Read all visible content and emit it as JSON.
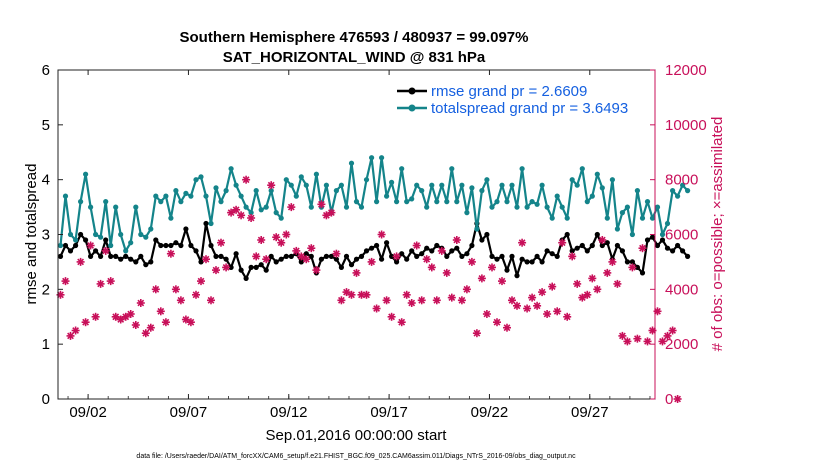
{
  "chart_data": {
    "type": "line",
    "title_line1": "Southern Hemisphere 476593 / 480937 = 99.097%",
    "title_line2": "SAT_HORIZONTAL_WIND @ 831 hPa",
    "xlabel": "Sep.01,2016 00:00:00 start",
    "ylabel_left": "rmse and totalspread",
    "ylabel_right": "# of obs: o=possible; ×=assimilated",
    "footnote": "data file: /Users/raeder/DAI/ATM_forcXX/CAM6_setup/f.e21.FHIST_BGC.f09_025.CAM6assim.011/Diags_NTrS_2016-09/obs_diag_output.nc",
    "xlim": [
      0.5,
      30.25
    ],
    "ylim_left": [
      0,
      6
    ],
    "ylim_right": [
      0,
      12000
    ],
    "x_ticks": [
      {
        "v": 2,
        "label": "09/02"
      },
      {
        "v": 7,
        "label": "09/07"
      },
      {
        "v": 12,
        "label": "09/12"
      },
      {
        "v": 17,
        "label": "09/17"
      },
      {
        "v": 22,
        "label": "09/22"
      },
      {
        "v": 27,
        "label": "09/27"
      }
    ],
    "y_ticks_left": [
      "0",
      "1",
      "2",
      "3",
      "4",
      "5",
      "6"
    ],
    "y_ticks_right": [
      "0",
      "2000",
      "4000",
      "6000",
      "8000",
      "10000",
      "12000"
    ],
    "x_step": 0.25,
    "x_start": 0.625,
    "series": [
      {
        "name": "rmse",
        "legend": "rmse grand pr = 2.6609",
        "color": "#000000",
        "marker": "dot",
        "values": [
          2.6,
          2.8,
          2.7,
          2.8,
          3.0,
          2.9,
          2.6,
          2.7,
          2.6,
          2.9,
          2.6,
          2.6,
          2.55,
          2.6,
          2.55,
          2.5,
          2.6,
          2.45,
          2.5,
          2.9,
          2.8,
          2.8,
          2.8,
          2.85,
          2.8,
          3.1,
          2.8,
          2.7,
          2.5,
          3.2,
          2.8,
          2.6,
          2.6,
          2.55,
          2.4,
          2.65,
          2.35,
          2.2,
          2.4,
          2.4,
          2.45,
          2.35,
          2.6,
          2.5,
          2.55,
          2.6,
          2.6,
          2.65,
          2.5,
          2.65,
          2.6,
          2.3,
          2.55,
          2.6,
          2.6,
          2.55,
          2.4,
          2.6,
          2.45,
          2.55,
          2.6,
          2.7,
          2.75,
          2.8,
          2.55,
          2.85,
          2.6,
          2.5,
          2.65,
          2.55,
          2.7,
          2.6,
          2.65,
          2.75,
          2.7,
          2.8,
          2.75,
          2.6,
          2.7,
          2.75,
          2.6,
          2.65,
          2.8,
          3.2,
          2.9,
          3.0,
          2.6,
          2.55,
          2.6,
          2.35,
          2.6,
          2.25,
          2.55,
          2.5,
          2.5,
          2.6,
          2.5,
          2.7,
          2.65,
          2.6,
          2.9,
          3.0,
          2.7,
          2.75,
          2.8,
          2.7,
          2.8,
          3.0,
          2.8,
          2.85,
          2.55,
          2.8,
          2.7,
          2.5,
          2.5,
          2.4,
          2.3,
          2.9,
          2.95,
          2.8,
          2.9,
          2.75,
          2.7,
          2.8,
          2.7,
          2.6
        ]
      },
      {
        "name": "totalspread",
        "legend": "totalspread grand pr = 3.6493",
        "color": "#14848a",
        "marker": "dot",
        "values": [
          2.8,
          3.7,
          3.0,
          2.9,
          3.6,
          4.1,
          3.5,
          3.0,
          2.95,
          3.6,
          2.8,
          3.5,
          3.0,
          2.7,
          2.85,
          3.5,
          3.0,
          2.95,
          3.1,
          3.7,
          3.6,
          3.7,
          3.3,
          3.8,
          3.6,
          3.75,
          3.7,
          4.0,
          4.05,
          3.7,
          3.2,
          3.85,
          3.6,
          3.8,
          4.2,
          3.9,
          3.7,
          3.5,
          3.4,
          3.8,
          3.45,
          3.5,
          3.8,
          3.4,
          3.3,
          4.0,
          3.9,
          3.7,
          4.05,
          3.9,
          3.5,
          4.1,
          3.5,
          3.9,
          3.4,
          3.8,
          3.9,
          3.5,
          4.3,
          3.6,
          3.5,
          4.0,
          4.4,
          3.6,
          4.4,
          3.7,
          3.95,
          3.6,
          4.2,
          3.6,
          3.65,
          3.9,
          3.8,
          3.5,
          3.9,
          3.6,
          3.9,
          3.6,
          4.2,
          3.6,
          3.9,
          3.4,
          3.85,
          3.1,
          3.8,
          4.0,
          3.5,
          3.6,
          3.9,
          3.6,
          3.9,
          3.5,
          4.2,
          3.5,
          3.6,
          3.55,
          3.9,
          3.5,
          3.3,
          3.7,
          3.5,
          3.3,
          4.0,
          3.9,
          4.2,
          3.6,
          3.7,
          4.1,
          3.85,
          3.3,
          4.0,
          3.1,
          3.4,
          3.5,
          3.0,
          3.8,
          3.3,
          3.6,
          3.3,
          3.5,
          3.0,
          3.2,
          3.8,
          3.7,
          3.9,
          3.8
        ]
      },
      {
        "name": "assimilated obs",
        "color": "#c8105a",
        "marker": "star",
        "axis": "right",
        "values": [
          3800,
          4300,
          2300,
          2500,
          5000,
          2800,
          5600,
          3000,
          4200,
          5400,
          4300,
          3000,
          2900,
          3000,
          3100,
          2700,
          3500,
          2400,
          2600,
          4000,
          3200,
          2800,
          5300,
          4000,
          3600,
          2900,
          2800,
          3800,
          4300,
          5100,
          3600,
          4700,
          5700,
          4800,
          6800,
          6900,
          6700,
          8000,
          6600,
          5200,
          5800,
          5100,
          7800,
          5900,
          5700,
          6000,
          7000,
          5400,
          5200,
          5100,
          5500,
          4700,
          7100,
          6700,
          6800,
          5300,
          3600,
          3900,
          3800,
          4600,
          3800,
          3800,
          5000,
          3300,
          6000,
          3600,
          3000,
          5200,
          2800,
          3800,
          3500,
          5600,
          3600,
          5100,
          4800,
          3600,
          5400,
          4600,
          3700,
          5800,
          3600,
          4000,
          5000,
          2400,
          4400,
          3100,
          4800,
          2800,
          4300,
          2600,
          3600,
          3400,
          5700,
          3300,
          3700,
          3400,
          3900,
          3100,
          4100,
          3200,
          5700,
          3000,
          5200,
          4200,
          3700,
          3800,
          4400,
          4000,
          5800,
          4600,
          5000,
          4200,
          2300,
          2100,
          4800,
          2200,
          5500,
          2100,
          2500,
          3200,
          2100,
          2300,
          2500,
          0
        ]
      }
    ]
  }
}
